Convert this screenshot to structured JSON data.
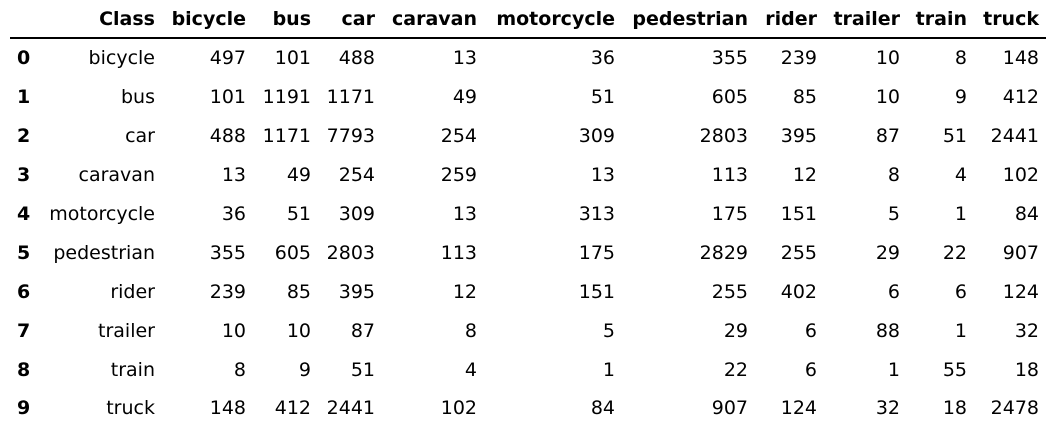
{
  "chart_data": {
    "type": "table",
    "columns": [
      "Class",
      "bicycle",
      "bus",
      "car",
      "caravan",
      "motorcycle",
      "pedestrian",
      "rider",
      "trailer",
      "train",
      "truck"
    ],
    "index": [
      "0",
      "1",
      "2",
      "3",
      "4",
      "5",
      "6",
      "7",
      "8",
      "9"
    ],
    "rows": [
      [
        "bicycle",
        "497",
        "101",
        "488",
        "13",
        "36",
        "355",
        "239",
        "10",
        "8",
        "148"
      ],
      [
        "bus",
        "101",
        "1191",
        "1171",
        "49",
        "51",
        "605",
        "85",
        "10",
        "9",
        "412"
      ],
      [
        "car",
        "488",
        "1171",
        "7793",
        "254",
        "309",
        "2803",
        "395",
        "87",
        "51",
        "2441"
      ],
      [
        "caravan",
        "13",
        "49",
        "254",
        "259",
        "13",
        "113",
        "12",
        "8",
        "4",
        "102"
      ],
      [
        "motorcycle",
        "36",
        "51",
        "309",
        "13",
        "313",
        "175",
        "151",
        "5",
        "1",
        "84"
      ],
      [
        "pedestrian",
        "355",
        "605",
        "2803",
        "113",
        "175",
        "2829",
        "255",
        "29",
        "22",
        "907"
      ],
      [
        "rider",
        "239",
        "85",
        "395",
        "12",
        "151",
        "255",
        "402",
        "6",
        "6",
        "124"
      ],
      [
        "trailer",
        "10",
        "10",
        "87",
        "8",
        "5",
        "29",
        "6",
        "88",
        "1",
        "32"
      ],
      [
        "train",
        "8",
        "9",
        "51",
        "4",
        "1",
        "22",
        "6",
        "1",
        "55",
        "18"
      ],
      [
        "truck",
        "148",
        "412",
        "2441",
        "102",
        "84",
        "907",
        "124",
        "32",
        "18",
        "2478"
      ]
    ]
  }
}
